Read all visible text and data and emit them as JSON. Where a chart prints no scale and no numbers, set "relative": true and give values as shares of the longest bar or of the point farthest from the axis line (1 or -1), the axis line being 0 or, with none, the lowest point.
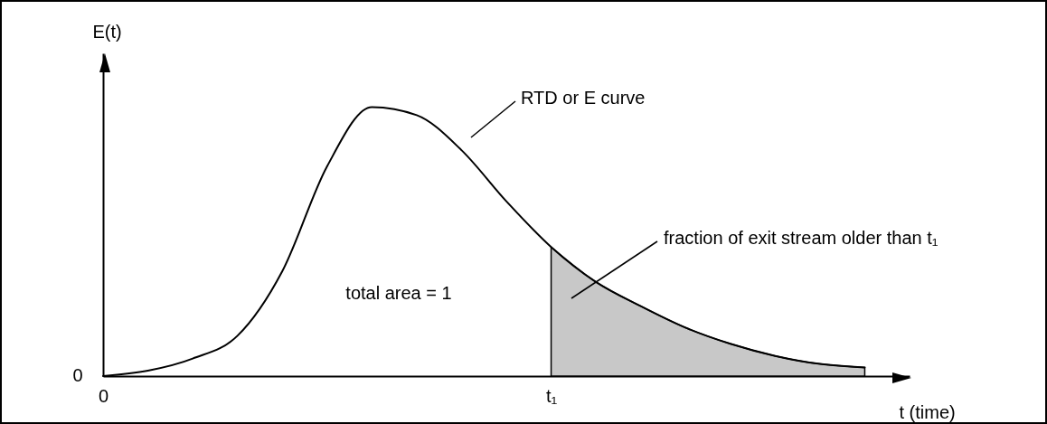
{
  "chart_data": {
    "type": "line",
    "relative": true,
    "xlabel": "t (time)",
    "ylabel": "E(t)",
    "categories": [
      "0",
      null,
      null,
      null,
      null,
      null,
      null,
      null,
      null,
      null,
      "t₁",
      null,
      null,
      null,
      null,
      null,
      null,
      null
    ],
    "grid": false,
    "marker": "none",
    "line_style": "solid",
    "annotations": [
      "total area = 1",
      "0",
      "RTD or E curve",
      "fraction of exit stream older than t₁"
    ],
    "series": [
      {
        "type": "line",
        "color": "#000000",
        "values": [
          0,
          0.02,
          0.065,
          0.15,
          0.39,
          0.78,
          1,
          0.97,
          0.84,
          0.65,
          0.48,
          0.35,
          0.26,
          0.18,
          0.12,
          0.075,
          0.045,
          0.032
        ]
      },
      {
        "type": "area",
        "color": "#c8c8c8",
        "values": [
          null,
          null,
          null,
          null,
          null,
          null,
          null,
          null,
          null,
          null,
          0.48,
          0.35,
          0.26,
          0.18,
          0.12,
          0.075,
          0.045,
          0.032
        ]
      }
    ]
  }
}
